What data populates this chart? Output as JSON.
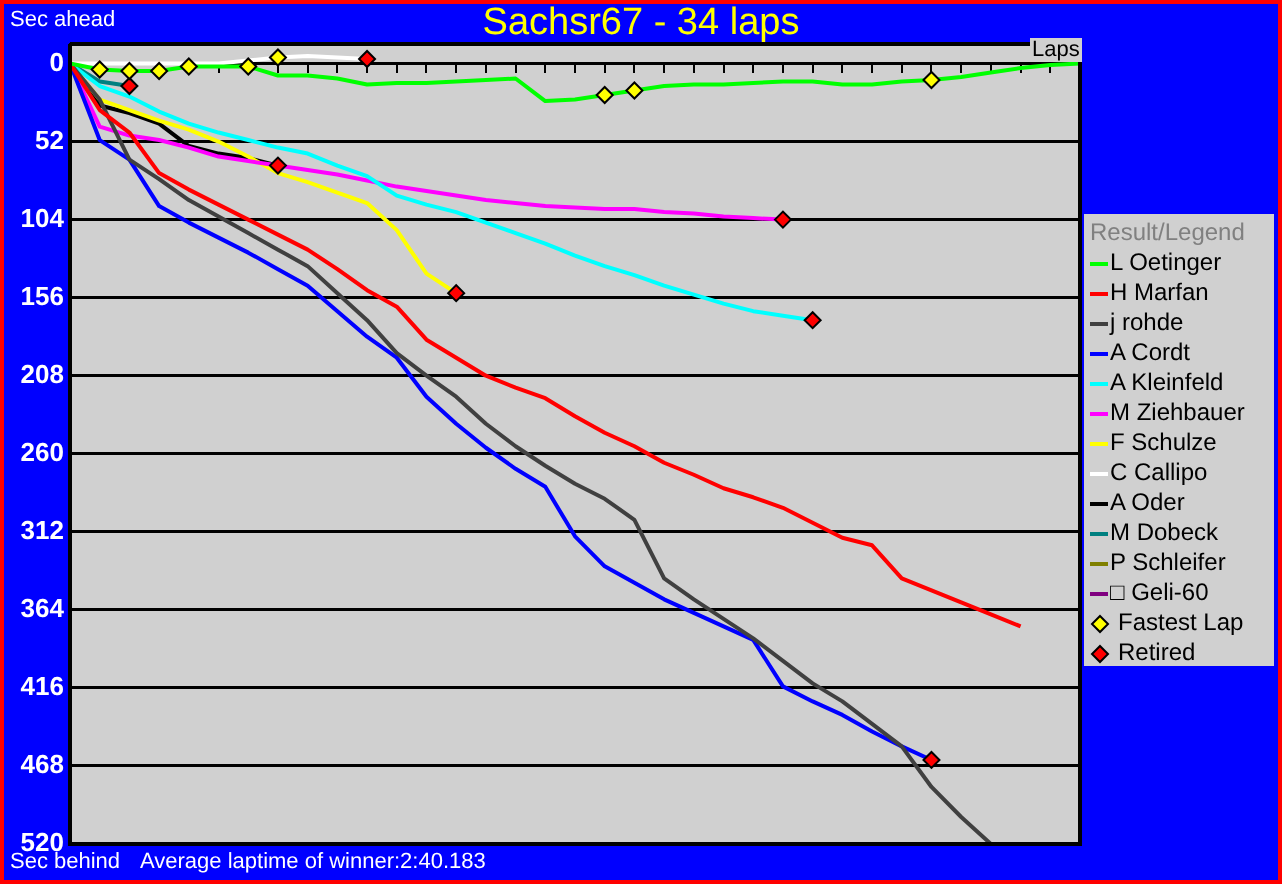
{
  "chart_data": {
    "type": "line",
    "title": "Sachsr67 - 34 laps",
    "xlabel": "Laps",
    "legend_title": "Result/Legend",
    "legend": "right",
    "grid": "y",
    "tick_labels": "y",
    "marker": "none",
    "annotations": [
      "Sec ahead",
      "Sec behind",
      "Average laptime of winner:2:40.183"
    ],
    "categories": [
      null,
      null,
      null,
      null,
      null,
      null,
      null,
      null,
      null,
      null,
      null,
      null,
      null,
      null,
      null,
      null,
      null,
      null,
      null,
      null,
      null,
      null,
      null,
      null,
      null,
      null,
      null,
      null,
      null,
      null,
      null,
      null,
      null,
      null,
      null
    ],
    "ylim": [
      520,
      -13
    ],
    "yticks": [
      0,
      52,
      104,
      156,
      208,
      260,
      312,
      364,
      416,
      468,
      520
    ],
    "series": [
      {
        "name": "L Oetinger",
        "color": "#00ff00",
        "values": [
          0,
          4,
          5,
          5,
          2,
          2,
          2,
          8,
          8,
          10,
          14,
          13,
          13,
          12,
          11,
          10,
          25,
          24,
          21,
          18,
          15,
          14,
          14,
          13,
          12,
          12,
          14,
          14,
          12,
          11,
          9,
          6,
          3,
          1,
          0
        ]
      },
      {
        "name": "H Marfan",
        "color": "#ff0000",
        "values": [
          0,
          31,
          46,
          73,
          84,
          94,
          104,
          114,
          124,
          137,
          151,
          162,
          184,
          196,
          208,
          216,
          223,
          235,
          246,
          255,
          266,
          274,
          283,
          289,
          296,
          306,
          316,
          321,
          343,
          351,
          359,
          367,
          375,
          null,
          null
        ]
      },
      {
        "name": "j rohde",
        "color": "#404040",
        "values": [
          0,
          24,
          64,
          77,
          91,
          102,
          113,
          124,
          135,
          153,
          171,
          193,
          208,
          222,
          240,
          255,
          268,
          280,
          290,
          304,
          343,
          357,
          370,
          383,
          398,
          413,
          425,
          440,
          455,
          482,
          502,
          520,
          null,
          null,
          null
        ]
      },
      {
        "name": "A Cordt",
        "color": "#0000ff",
        "values": [
          0,
          51,
          64,
          95,
          106,
          116,
          126,
          137,
          148,
          165,
          182,
          196,
          222,
          240,
          256,
          270,
          282,
          315,
          335,
          346,
          357,
          366,
          375,
          384,
          415,
          425,
          434,
          445,
          455,
          464,
          null,
          null,
          null,
          null,
          null
        ]
      },
      {
        "name": "A Kleinfeld",
        "color": "#00ffff",
        "values": [
          0,
          15,
          22,
          32,
          40,
          46,
          51,
          56,
          60,
          68,
          75,
          88,
          94,
          99,
          106,
          113,
          120,
          128,
          135,
          141,
          148,
          154,
          160,
          165,
          168,
          171,
          null,
          null,
          null,
          null,
          null,
          null,
          null,
          null,
          null
        ]
      },
      {
        "name": "M Ziehbauer",
        "color": "#ff00ff",
        "values": [
          0,
          42,
          48,
          51,
          56,
          62,
          65,
          68,
          71,
          74,
          78,
          82,
          85,
          88,
          91,
          93,
          95,
          96,
          97,
          97,
          99,
          100,
          102,
          103,
          104,
          null,
          null,
          null,
          null,
          null,
          null,
          null,
          null,
          null,
          null
        ]
      },
      {
        "name": "F Schulze",
        "color": "#ffff00",
        "values": [
          0,
          24,
          31,
          38,
          44,
          52,
          62,
          73,
          79,
          86,
          93,
          111,
          140,
          153,
          null,
          null,
          null,
          null,
          null,
          null,
          null,
          null,
          null,
          null,
          null,
          null,
          null,
          null,
          null,
          null,
          null,
          null,
          null,
          null,
          null
        ]
      },
      {
        "name": "C Callipo",
        "color": "#ffffff",
        "values": [
          0,
          0,
          0,
          0,
          0,
          0,
          -2,
          -4,
          -5,
          -4,
          -3,
          null,
          null,
          null,
          null,
          null,
          null,
          null,
          null,
          null,
          null,
          null,
          null,
          null,
          null,
          null,
          null,
          null,
          null,
          null,
          null,
          null,
          null,
          null,
          null
        ]
      },
      {
        "name": "A Oder",
        "color": "#000000",
        "values": [
          0,
          28,
          33,
          40,
          55,
          60,
          63,
          68,
          null,
          null,
          null,
          null,
          null,
          null,
          null,
          null,
          null,
          null,
          null,
          null,
          null,
          null,
          null,
          null,
          null,
          null,
          null,
          null,
          null,
          null,
          null,
          null,
          null,
          null,
          null
        ]
      },
      {
        "name": "M Dobeck",
        "color": "#008080",
        "values": [
          0,
          12,
          15,
          null,
          null,
          null,
          null,
          null,
          null,
          null,
          null,
          null,
          null,
          null,
          null,
          null,
          null,
          null,
          null,
          null,
          null,
          null,
          null,
          null,
          null,
          null,
          null,
          null,
          null,
          null,
          null,
          null,
          null,
          null,
          null
        ]
      },
      {
        "name": "P Schleifer",
        "color": "#808000",
        "values": [
          null,
          null,
          null,
          null,
          null,
          null,
          null,
          null,
          null,
          null,
          null,
          null,
          null,
          null,
          null,
          null,
          null,
          null,
          null,
          null,
          null,
          null,
          null,
          null,
          null,
          null,
          null,
          null,
          null,
          null,
          null,
          null,
          null,
          null,
          null
        ]
      },
      {
        "name": "□ Geli-60",
        "color": "#800080",
        "values": [
          null,
          null,
          null,
          null,
          null,
          null,
          null,
          null,
          null,
          null,
          null,
          null,
          null,
          null,
          null,
          null,
          null,
          null,
          null,
          null,
          null,
          null,
          null,
          null,
          null,
          null,
          null,
          null,
          null,
          null,
          null,
          null,
          null,
          null,
          null
        ]
      },
      {
        "name": "Fastest Lap",
        "type": "scatter",
        "marker": "diamond",
        "color": "#ffff00",
        "values": [
          null,
          4,
          5,
          5,
          2,
          null,
          2,
          -4,
          null,
          null,
          null,
          null,
          null,
          null,
          null,
          null,
          null,
          null,
          21,
          18,
          null,
          null,
          null,
          null,
          null,
          null,
          null,
          null,
          null,
          11,
          null,
          null,
          null,
          null,
          null
        ]
      },
      {
        "name": "Retired",
        "type": "scatter",
        "marker": "diamond",
        "color": "#ff0000",
        "values": [
          null,
          null,
          15,
          null,
          null,
          null,
          null,
          68,
          null,
          null,
          -3,
          null,
          null,
          153,
          null,
          null,
          null,
          null,
          null,
          null,
          null,
          null,
          null,
          null,
          104,
          171,
          null,
          null,
          null,
          464,
          null,
          null,
          null,
          null,
          null
        ]
      }
    ]
  }
}
